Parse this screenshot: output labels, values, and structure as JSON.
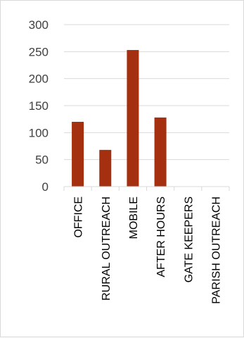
{
  "chart_data": {
    "type": "bar",
    "title": "",
    "xlabel": "",
    "ylabel": "",
    "categories": [
      "OFFICE",
      "RURAL OUTREACH",
      "MOBILE",
      "AFTER HOURS",
      "GATE KEEPERS",
      "PARISH OUTREACH"
    ],
    "values": [
      120,
      68,
      253,
      128,
      0,
      0
    ],
    "ylim": [
      0,
      300
    ],
    "yticks": [
      0,
      50,
      100,
      150,
      200,
      250,
      300
    ],
    "grid": true,
    "legend": "none",
    "bar_color": "#a5300f"
  }
}
